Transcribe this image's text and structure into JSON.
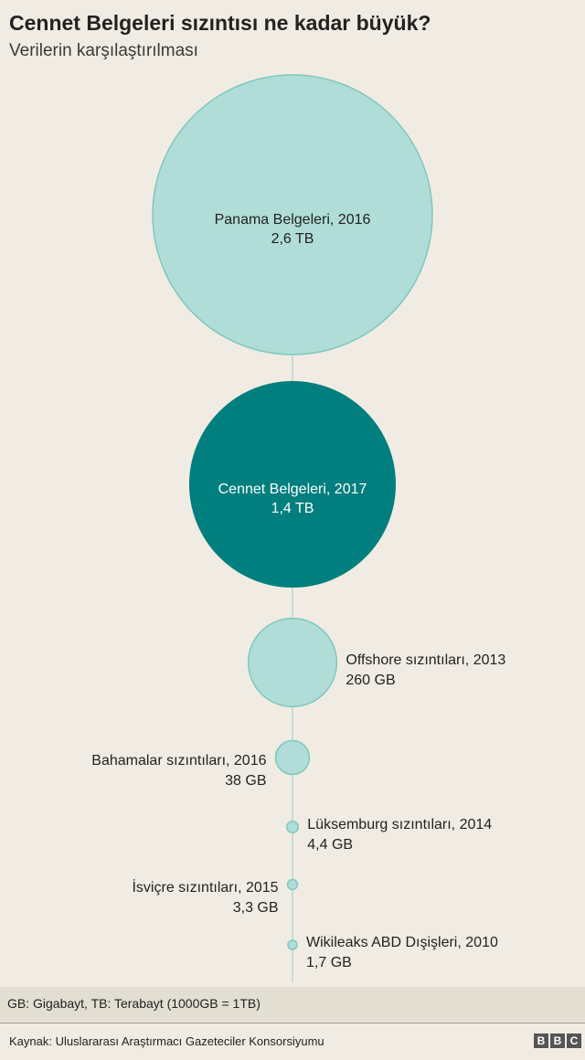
{
  "chart_data": {
    "type": "bubble",
    "title": "Cennet Belgeleri sızıntısı ne kadar büyük?",
    "subtitle": "Verilerin karşılaştırılması",
    "unit_note": "GB: Gigabayt, TB: Terabayt (1000GB = 1TB)",
    "source": "Kaynak: Uluslararası Araştırmacı Gazeteciler Konsorsiyumu",
    "colors": {
      "default": "#b0ddd7",
      "highlight": "#007f7e",
      "stroke": "#7fc8be",
      "connector": "#b9d8d2"
    },
    "points": [
      {
        "name": "Panama Belgeleri, 2016",
        "value_text": "2,6 TB",
        "value_gb": 2600,
        "label_position": "inside",
        "highlight": false
      },
      {
        "name": "Cennet Belgeleri, 2017",
        "value_text": "1,4 TB",
        "value_gb": 1400,
        "label_position": "inside",
        "highlight": true
      },
      {
        "name": "Offshore sızıntıları, 2013",
        "value_text": "260 GB",
        "value_gb": 260,
        "label_position": "right",
        "highlight": false
      },
      {
        "name": "Bahamalar sızıntıları, 2016",
        "value_text": "38 GB",
        "value_gb": 38,
        "label_position": "left",
        "highlight": false
      },
      {
        "name": "Lüksemburg sızıntıları, 2014",
        "value_text": "4,4 GB",
        "value_gb": 4.4,
        "label_position": "right",
        "highlight": false
      },
      {
        "name": "İsviçre sızıntıları, 2015",
        "value_text": "3,3 GB",
        "value_gb": 3.3,
        "label_position": "left",
        "highlight": false
      },
      {
        "name": "Wikileaks ABD Dışişleri, 2010",
        "value_text": "1,7 GB",
        "value_gb": 1.7,
        "label_position": "right",
        "highlight": false
      }
    ]
  },
  "logo": [
    "B",
    "B",
    "C"
  ]
}
